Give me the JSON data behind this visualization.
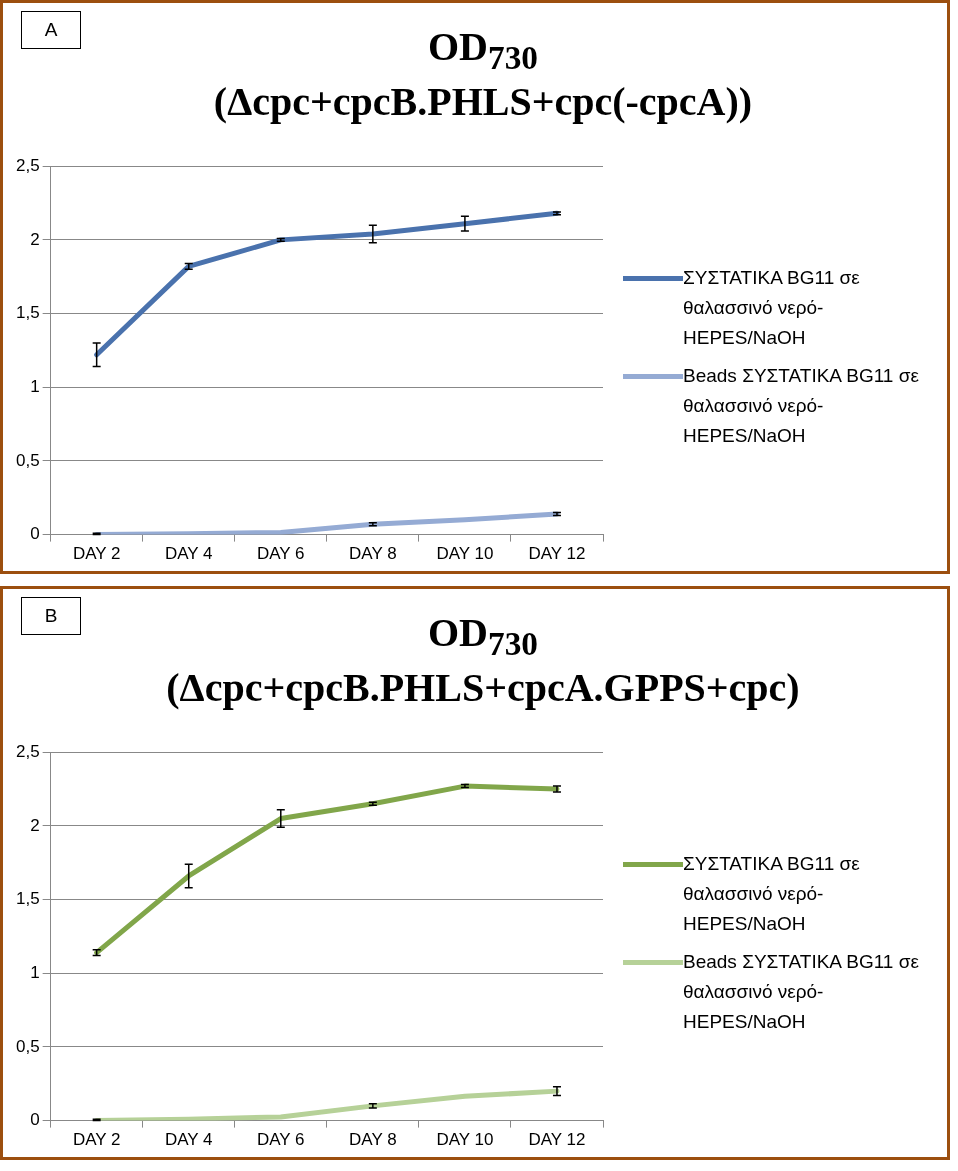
{
  "chart_data": [
    {
      "type": "line",
      "title": "OD$_{730}$",
      "subtitle": "(Δcpc+cpcB.PHLS+cpc(-cpcA))",
      "annotations": [
        "A"
      ],
      "categories": [
        "DAY 2",
        "DAY 4",
        "DAY 6",
        "DAY 8",
        "DAY 10",
        "DAY 12"
      ],
      "series": [
        {
          "name": "ΣΥΣΤΑΤΙΚΑ BG11 σε θαλασσινό νερό-HEPES/NaOH",
          "color": "#4a72ad",
          "values": [
            1.22,
            1.82,
            2.0,
            2.04,
            2.11,
            2.18
          ],
          "errors": [
            0.08,
            0.02,
            0.01,
            0.06,
            0.05,
            0.01
          ]
        },
        {
          "name": "Beads ΣΥΣΤΑΤΙΚΑ BG11 σε θαλασσινό νερό-HEPES/NaOH",
          "color": "#95abd4",
          "values": [
            0,
            0.005,
            0.015,
            0.07,
            0.1,
            0.14
          ],
          "errors": [
            [
              0,
              0.01
            ],
            null,
            null,
            0.01,
            null,
            0.01
          ]
        }
      ],
      "ylim": [
        0,
        2.5
      ],
      "yticks": [
        0,
        {
          "value": 0.5,
          "label": "0,5"
        },
        1,
        {
          "value": 1.5,
          "label": "1,5"
        },
        2,
        {
          "value": 2.5,
          "label": "2,5"
        }
      ],
      "grid": "y",
      "legend": "right",
      "marker": "none",
      "line_style": "solid"
    },
    {
      "type": "line",
      "title": "OD$_{730}$",
      "subtitle": "(Δcpc+cpcB.PHLS+cpcA.GPPS+cpc)",
      "annotations": [
        "B"
      ],
      "categories": [
        "DAY 2",
        "DAY 4",
        "DAY 6",
        "DAY 8",
        "DAY 10",
        "DAY 12"
      ],
      "series": [
        {
          "name": "ΣΥΣΤΑΤΙΚΑ BG11 σε θαλασσινό νερό-HEPES/NaOH",
          "color": "#81a64a",
          "values": [
            1.14,
            1.66,
            2.05,
            2.15,
            2.27,
            2.25
          ],
          "errors": [
            0.02,
            0.08,
            0.06,
            0.01,
            0.01,
            0.02
          ]
        },
        {
          "name": "Beads ΣΥΣΤΑΤΙΚΑ BG11 σε θαλασσινό νερό-HEPES/NaOH",
          "color": "#b6d198",
          "values": [
            0,
            0.01,
            0.025,
            0.1,
            0.165,
            0.2
          ],
          "errors": [
            [
              0,
              0.01
            ],
            null,
            null,
            0.015,
            null,
            0.03
          ]
        }
      ],
      "ylim": [
        0,
        2.5
      ],
      "yticks": [
        0,
        {
          "value": 0.5,
          "label": "0,5"
        },
        1,
        {
          "value": 1.5,
          "label": "1,5"
        },
        2,
        {
          "value": 2.5,
          "label": "2,5"
        }
      ],
      "grid": "y",
      "legend": "right",
      "marker": "none",
      "line_style": "solid"
    }
  ]
}
